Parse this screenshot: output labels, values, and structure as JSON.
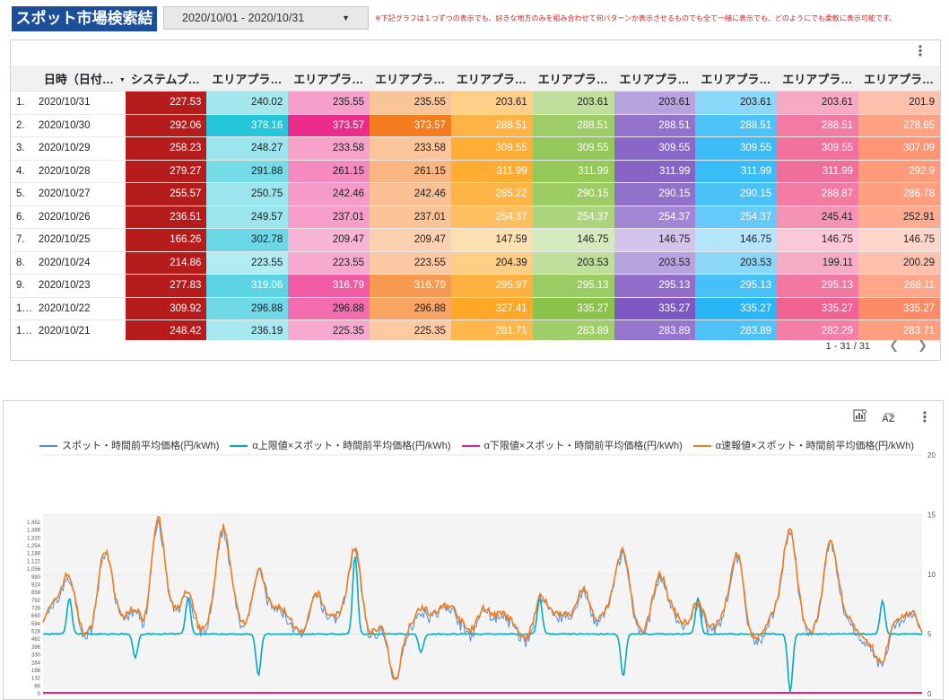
{
  "header": {
    "title": "スポット市場検索結果",
    "date_range": "2020/10/01 - 2020/10/31",
    "note": "※下記グラフは１つずつの表示でも、好きな地方のみを組み合わせて何パターンか表示させるものでも全て一緒に表示でも、どのようにでも柔軟に表示可能です。"
  },
  "table": {
    "columns": [
      "日時（日付…",
      "システムプ…",
      "エリアプラ…",
      "エリアプラ…",
      "エリアプラ…",
      "エリアプラ…",
      "エリアプラ…",
      "エリアプラ…",
      "エリアプラ…",
      "エリアプラ…",
      "エリアプラ…"
    ],
    "sort_icon": "sort-desc-icon",
    "column_colors": [
      "#b71c1c",
      "#26c6da",
      "#ec2c8a",
      "#f57c1f",
      "#ffa726",
      "#8bc34a",
      "#7e57c2",
      "#29b6f6",
      "#f06292",
      "#ff8a65"
    ],
    "rows": [
      {
        "idx": "1.",
        "date": "2020/10/31",
        "values": [
          "227.53",
          "240.02",
          "235.55",
          "235.55",
          "203.61",
          "203.61",
          "203.61",
          "203.61",
          "203.61",
          "201.9"
        ]
      },
      {
        "idx": "2.",
        "date": "2020/10/30",
        "values": [
          "292.06",
          "378.16",
          "373.57",
          "373.57",
          "288.51",
          "288.51",
          "288.51",
          "288.51",
          "288.51",
          "278.65"
        ]
      },
      {
        "idx": "3.",
        "date": "2020/10/29",
        "values": [
          "258.23",
          "248.27",
          "233.58",
          "233.58",
          "309.55",
          "309.55",
          "309.55",
          "309.55",
          "309.55",
          "307.09"
        ]
      },
      {
        "idx": "4.",
        "date": "2020/10/28",
        "values": [
          "279.27",
          "291.88",
          "261.15",
          "261.15",
          "311.99",
          "311.99",
          "311.99",
          "311.99",
          "311.99",
          "292.9"
        ]
      },
      {
        "idx": "5.",
        "date": "2020/10/27",
        "values": [
          "255.57",
          "250.75",
          "242.46",
          "242.46",
          "285.22",
          "290.15",
          "290.15",
          "290.15",
          "288.87",
          "286.78"
        ]
      },
      {
        "idx": "6.",
        "date": "2020/10/26",
        "values": [
          "236.51",
          "249.57",
          "237.01",
          "237.01",
          "254.37",
          "254.37",
          "254.37",
          "254.37",
          "245.41",
          "252.91"
        ]
      },
      {
        "idx": "7.",
        "date": "2020/10/25",
        "values": [
          "166.26",
          "302.78",
          "209.47",
          "209.47",
          "147.59",
          "146.75",
          "146.75",
          "146.75",
          "146.75",
          "146.75"
        ]
      },
      {
        "idx": "8.",
        "date": "2020/10/24",
        "values": [
          "214.86",
          "223.55",
          "223.55",
          "223.55",
          "204.39",
          "203.53",
          "203.53",
          "203.53",
          "199.11",
          "200.29"
        ]
      },
      {
        "idx": "9.",
        "date": "2020/10/23",
        "values": [
          "277.83",
          "319.06",
          "316.79",
          "316.79",
          "295.97",
          "295.13",
          "295.13",
          "295.13",
          "295.13",
          "268.11"
        ]
      },
      {
        "idx": "1…",
        "date": "2020/10/22",
        "values": [
          "309.92",
          "296.88",
          "296.88",
          "296.88",
          "327.41",
          "335.27",
          "335.27",
          "335.27",
          "335.27",
          "335.27"
        ]
      },
      {
        "idx": "1…",
        "date": "2020/10/21",
        "values": [
          "248.42",
          "236.19",
          "225.35",
          "225.35",
          "281.71",
          "283.89",
          "283.89",
          "283.89",
          "282.29",
          "283.71"
        ]
      }
    ],
    "pagination": "1 - 31 / 31"
  },
  "chart_data": {
    "type": "line",
    "series": [
      {
        "name": "スポット・時間前平均価格(円/kWh)",
        "color": "#4a90e2"
      },
      {
        "name": "α上限値×スポット・時間前平均価格(円/kWh)",
        "color": "#00acc1"
      },
      {
        "name": "α下限値×スポット・時間前平均価格(円/kWh)",
        "color": "#e91e8c"
      },
      {
        "name": "α速報値×スポット・時間前平均価格(円/kWh)",
        "color": "#f07c1e"
      }
    ],
    "y_left_ticks": [
      "1,452",
      "1,386",
      "1,320",
      "1,254",
      "1,188",
      "1,122",
      "1,056",
      "990",
      "924",
      "858",
      "792",
      "726",
      "660",
      "594",
      "528",
      "462",
      "396",
      "330",
      "264",
      "198",
      "132",
      "66",
      "0"
    ],
    "y_right_ticks": [
      "20",
      "15",
      "10",
      "5",
      "0"
    ],
    "right_ylim": [
      0,
      20
    ],
    "grid": true,
    "legend_position": "top"
  }
}
